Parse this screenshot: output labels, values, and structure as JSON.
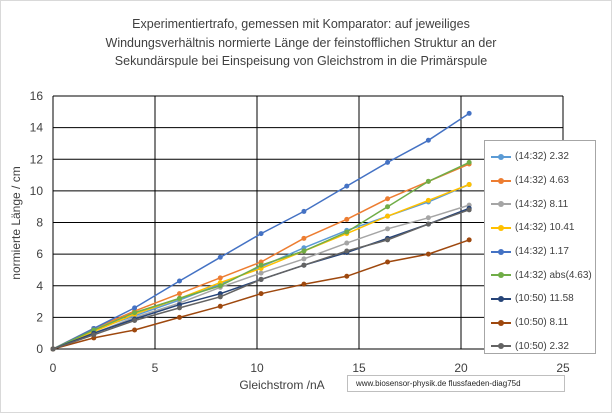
{
  "chart_data": {
    "type": "line",
    "title_lines": [
      "Experimentiertrafo,  gemessen mit Komparator:  auf  jeweiliges",
      "Windungsverhältnis normierte Länge  der  feinstofflichen Struktur an der",
      "Sekundärspule bei Einspeisung von Gleichstrom in die Primärspule"
    ],
    "xlabel": "Gleichstrom /nA",
    "ylabel": "normierte Länge / cm",
    "xlim": [
      0,
      25
    ],
    "ylim": [
      0,
      16
    ],
    "xticks": [
      0,
      5,
      10,
      15,
      20,
      25
    ],
    "yticks": [
      0,
      2,
      4,
      6,
      8,
      10,
      12,
      14,
      16
    ],
    "grid": true,
    "legend_position": "right",
    "series": [
      {
        "name": "(14:32) 2.32",
        "color": "#5b9bd5",
        "x": [
          0,
          2,
          4,
          6.2,
          8.2,
          10.2,
          12.3,
          14.4,
          16.4,
          18.4,
          20.4
        ],
        "y": [
          0,
          1.2,
          2.1,
          3.1,
          4.1,
          5.2,
          6.4,
          7.5,
          8.4,
          9.3,
          10.4
        ]
      },
      {
        "name": "(14:32) 4.63",
        "color": "#ed7d31",
        "x": [
          0,
          2,
          4,
          6.2,
          8.2,
          10.2,
          12.3,
          14.4,
          16.4,
          18.4,
          20.4
        ],
        "y": [
          0,
          1.3,
          2.4,
          3.5,
          4.5,
          5.5,
          7.0,
          8.2,
          9.5,
          10.6,
          11.7
        ]
      },
      {
        "name": "(14:32) 8.11",
        "color": "#a5a5a5",
        "x": [
          0,
          2,
          4,
          6.2,
          8.2,
          10.2,
          12.3,
          14.4,
          16.4,
          18.4,
          20.4
        ],
        "y": [
          0,
          1.0,
          2.0,
          2.9,
          3.9,
          4.8,
          5.7,
          6.7,
          7.6,
          8.3,
          9.1
        ]
      },
      {
        "name": "(14:32) 10.41",
        "color": "#ffc000",
        "x": [
          0,
          2,
          4,
          6.2,
          8.2,
          10.2,
          12.3,
          14.4,
          16.4,
          18.4,
          20.4
        ],
        "y": [
          0,
          1.1,
          2.2,
          3.2,
          4.2,
          5.1,
          6.2,
          7.3,
          8.4,
          9.4,
          10.4
        ]
      },
      {
        "name": "(14:32) 1.17",
        "color": "#4472c4",
        "x": [
          0,
          2,
          4,
          6.2,
          8.2,
          10.2,
          12.3,
          14.4,
          16.4,
          18.4,
          20.4
        ],
        "y": [
          0,
          1.3,
          2.6,
          4.3,
          5.8,
          7.3,
          8.7,
          10.3,
          11.8,
          13.2,
          14.9
        ]
      },
      {
        "name": "(14:32) abs(4.63)",
        "color": "#70ad47",
        "x": [
          0,
          2,
          4,
          6.2,
          8.2,
          10.2,
          12.3,
          14.4,
          16.4,
          18.4,
          20.4
        ],
        "y": [
          0,
          1.2,
          2.3,
          3.2,
          4.0,
          5.3,
          6.2,
          7.4,
          9.0,
          10.6,
          11.8
        ]
      },
      {
        "name": "(10:50) 11.58",
        "color": "#264478",
        "x": [
          0,
          2,
          4,
          6.2,
          8.2,
          10.2,
          12.3,
          14.4,
          16.4,
          18.4,
          20.4
        ],
        "y": [
          0,
          1.0,
          1.9,
          2.8,
          3.5,
          4.4,
          5.3,
          6.1,
          7.0,
          7.9,
          8.9
        ]
      },
      {
        "name": "(10:50) 8.11",
        "color": "#9e480e",
        "x": [
          0,
          2,
          4,
          6.2,
          8.2,
          10.2,
          12.3,
          14.4,
          16.4,
          18.4,
          20.4
        ],
        "y": [
          0,
          0.7,
          1.2,
          2.0,
          2.7,
          3.5,
          4.1,
          4.6,
          5.5,
          6.0,
          6.9
        ]
      },
      {
        "name": "(10:50) 2.32",
        "color": "#636363",
        "x": [
          0,
          2,
          4,
          6.2,
          8.2,
          10.2,
          12.3,
          14.4,
          16.4,
          18.4,
          20.4
        ],
        "y": [
          0,
          0.9,
          1.8,
          2.6,
          3.3,
          4.4,
          5.3,
          6.2,
          6.9,
          7.9,
          8.8
        ]
      }
    ]
  },
  "watermark": "www.biosensor-physik.de  flussfaeden-diag75d"
}
